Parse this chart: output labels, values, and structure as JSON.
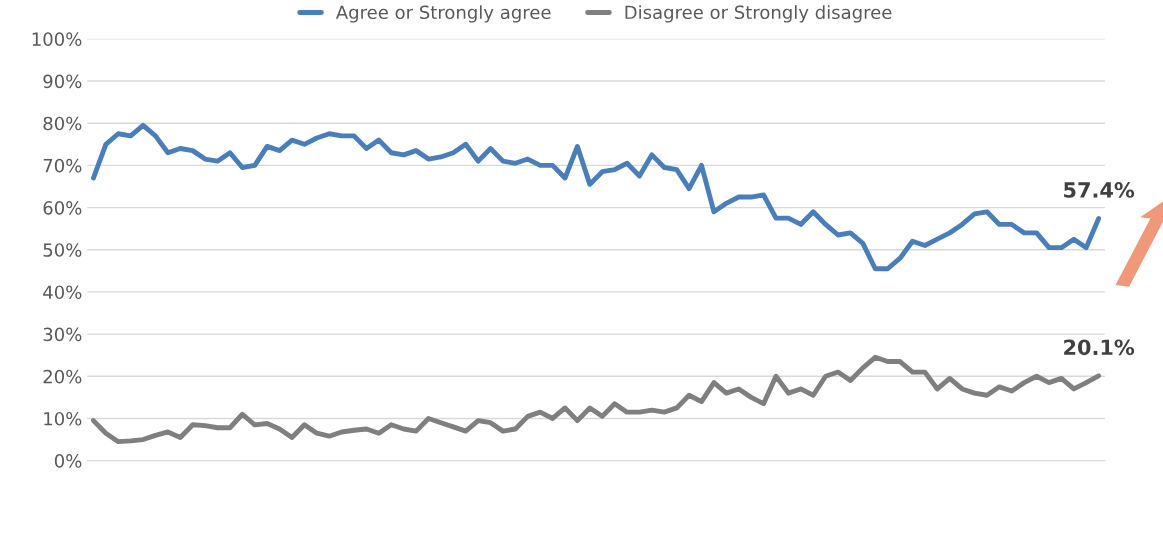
{
  "chart_data": {
    "type": "line",
    "categories": [
      null,
      null,
      null,
      null,
      null,
      null,
      null,
      null,
      null,
      null,
      null,
      null,
      null,
      null,
      null,
      null,
      null,
      null,
      null,
      null,
      null,
      null,
      null,
      null,
      null,
      null,
      null,
      null,
      null,
      null,
      null,
      null,
      null,
      null,
      null,
      null,
      null,
      null,
      null,
      null,
      null,
      null,
      null,
      null,
      null,
      null,
      null,
      null,
      null,
      null,
      null,
      null,
      null,
      null,
      null,
      null,
      null,
      null,
      null,
      null,
      null,
      null,
      null,
      null,
      null,
      null,
      null,
      null,
      null,
      null,
      null,
      null,
      null,
      null,
      null,
      null,
      null,
      null,
      null,
      null,
      null,
      null
    ],
    "series": [
      {
        "name": "Agree or Strongly agree",
        "color": "#4a7ebb",
        "values": [
          67,
          75,
          77.5,
          77,
          79.5,
          77,
          73,
          74,
          73.5,
          71.5,
          71,
          73,
          69.5,
          70,
          74.5,
          73.5,
          76,
          75,
          76.5,
          77.5,
          77,
          77,
          74,
          76,
          73,
          72.5,
          73.5,
          71.5,
          72,
          73,
          75,
          71,
          74,
          71,
          70.5,
          71.5,
          70,
          70,
          67,
          74.5,
          65.5,
          68.5,
          69,
          70.5,
          67.5,
          72.5,
          69.5,
          69,
          64.5,
          70,
          59,
          61,
          62.5,
          62.5,
          63,
          57.5,
          57.5,
          56,
          59,
          56,
          53.5,
          54,
          51.5,
          45.5,
          45.5,
          48,
          52,
          51,
          52.5,
          54,
          56,
          58.5,
          59,
          56,
          56,
          54,
          54,
          50.5,
          50.5,
          52.5,
          50.5,
          57.4
        ]
      },
      {
        "name": "Disagree or Strongly disagree",
        "color": "#7f7f7f",
        "values": [
          9.5,
          6.5,
          4.5,
          4.7,
          5,
          6,
          6.8,
          5.5,
          8.5,
          8.3,
          7.8,
          7.8,
          11,
          8.5,
          8.8,
          7.5,
          5.5,
          8.5,
          6.5,
          5.8,
          6.8,
          7.2,
          7.5,
          6.5,
          8.5,
          7.5,
          7,
          10,
          9,
          8,
          7,
          9.5,
          9,
          7,
          7.5,
          10.5,
          11.5,
          10,
          12.5,
          9.5,
          12.5,
          10.5,
          13.5,
          11.5,
          11.5,
          12,
          11.5,
          12.5,
          15.5,
          14,
          18.5,
          16,
          17,
          15,
          13.5,
          20,
          16,
          17,
          15.5,
          20,
          21,
          19,
          22,
          24.5,
          23.5,
          23.5,
          21,
          21,
          17,
          19.5,
          17,
          16,
          15.5,
          17.5,
          16.5,
          18.5,
          20,
          18.5,
          19.5,
          17,
          18.5,
          20.1
        ]
      }
    ],
    "annotations": [
      "57.4%",
      "20.1%"
    ],
    "ylim": [
      0,
      100
    ],
    "yticks": [
      {
        "value": 0,
        "label": "0%"
      },
      {
        "value": 10,
        "label": "10%"
      },
      {
        "value": 20,
        "label": "20%"
      },
      {
        "value": 30,
        "label": "30%"
      },
      {
        "value": 40,
        "label": "40%"
      },
      {
        "value": 50,
        "label": "50%"
      },
      {
        "value": 60,
        "label": "60%"
      },
      {
        "value": 70,
        "label": "70%"
      },
      {
        "value": 80,
        "label": "80%"
      },
      {
        "value": 90,
        "label": "90%"
      },
      {
        "value": 100,
        "label": "100%"
      }
    ],
    "grid": "y",
    "legend": "top",
    "marker": "none",
    "line_style": "solid"
  }
}
